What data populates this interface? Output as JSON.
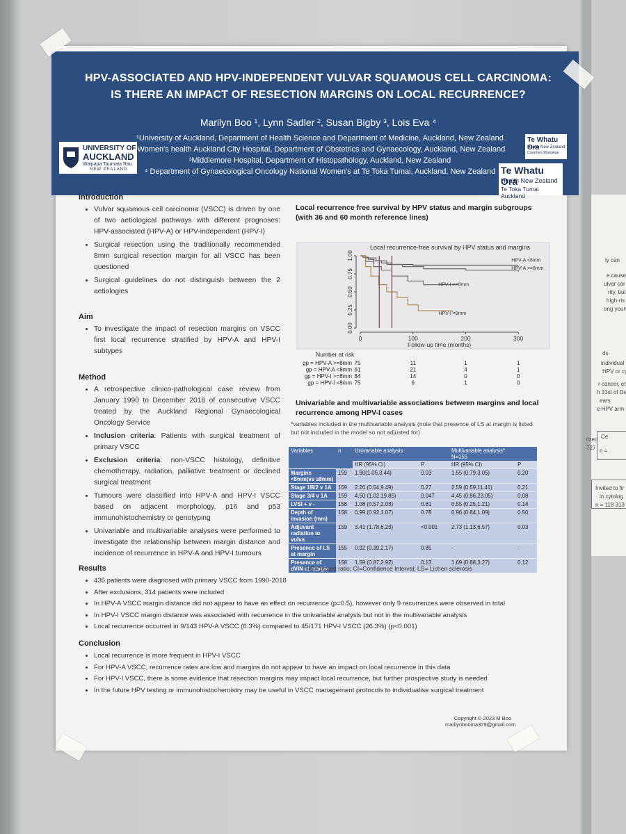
{
  "header": {
    "title_lines": [
      "HPV-ASSOCIATED AND HPV-INDEPENDENT VULVAR SQUAMOUS CELL CARCINOMA:",
      "IS THERE AN IMPACT OF RESECTION MARGINS ON LOCAL RECURRENCE?"
    ],
    "authors": "Marilyn Boo ¹, Lynn Sadler ², Susan Bigby ³, Lois Eva ⁴",
    "affiliations": [
      "¹University of Auckland, Department of Health Science and Department of Medicine, Auckland, New Zealand",
      "²Women's health Auckland City Hospital, Department of Obstetrics and Gynaecology, Auckland, New Zealand",
      "³Middlemore Hospital, Department of Histopathology, Auckland, New Zealand",
      "⁴ Department of Gynaecological Oncology National Women's at Te Toka Tumai, Auckland, New Zealand"
    ],
    "logo_university": [
      "UNIVERSITY OF",
      "AUCKLAND",
      "Waipapa Taumata Rau",
      "NEW ZEALAND"
    ],
    "logo_counties": [
      "Te Whatu Ora",
      "Health New Zealand",
      "Counties Manukau"
    ],
    "logo_auckland": [
      "Te Whatu Ora",
      "Health New Zealand",
      "Te Toka Tumai Auckland"
    ]
  },
  "introduction": {
    "heading": "Introduction",
    "bullets": [
      "Vulvar squamous cell carcinoma (VSCC) is driven by one of two aetiological pathways with different prognoses: HPV-associated (HPV-A) or HPV-independent (HPV-I)",
      "Surgical resection using the traditionally recommended 8mm surgical resection margin for all VSCC has been questioned",
      "Surgical guidelines do not distinguish between the 2 aetiologies"
    ]
  },
  "aim": {
    "heading": "Aim",
    "bullets": [
      "To investigate the impact of resection margins on VSCC first local recurrence stratified by HPV-A and HPV-I subtypes"
    ]
  },
  "method": {
    "heading": "Method",
    "bullets": [
      "A retrospective clinico-pathological case review from January 1990 to December 2018 of consecutive VSCC treated by the Auckland Regional Gynaecological Oncology Service",
      {
        "bold": "Inclusion criteria",
        "text": ": Patients with surgical treatment of primary VSCC"
      },
      {
        "bold": "Exclusion criteria",
        "text": ": non-VSCC histology, definitive chemotherapy, radiation, palliative treatment or declined surgical treatment"
      },
      "Tumours were classified into HPV-A and HPV-I VSCC based on adjacent morphology, p16 and p53 immunohistochemistry or genotyping",
      "Univariable and multivariable analyses were performed to investigate the relationship between margin distance and incidence of recurrence in HPV-A and HPV-I tumours"
    ]
  },
  "results": {
    "heading": "Results",
    "bullets": [
      "435 patients were diagnosed with primary VSCC from 1990-2018",
      "After exclusions, 314 patients were included",
      "In HPV-A VSCC margin distance did not appear to have an effect on recurrence (p=0.5), however only 9 recurrences were observed in total",
      "In HPV-I VSCC margin distance was associated with recurrence in the univariable analysis but not in the multivariable analysis",
      "Local recurrence occurred in 9/143 HPV-A VSCC (6.3%) compared to 45/171 HPV-I VSCC (26.3%) (p<0.001)"
    ]
  },
  "conclusion": {
    "heading": "Conclusion",
    "bullets": [
      "Local recurrence is more frequent in HPV-I VSCC",
      "For HPV-A VSCC, recurrence rates are low and margins do not appear to have an impact on local recurrence in this data",
      "For HPV-I VSCC, there is some evidence that resection margins may impact local recurrence, but further prospective study is needed",
      "In the future HPV testing or immunohistochemistry may be useful in VSCC management protocols to individualise surgical treatment"
    ]
  },
  "figure_heading": "Local recurrence free survival by HPV status and margin subgroups (with 36 and 60 month reference lines)",
  "chart_data": {
    "type": "line",
    "step": true,
    "title": "Local recurrence-free survival by HPV status and margins",
    "xlabel": "Follow-up time (months)",
    "xlim": [
      0,
      330
    ],
    "xticks": [
      0,
      100,
      200,
      300
    ],
    "ylim": [
      0,
      1
    ],
    "yticks": [
      {
        "value": 0,
        "label": "0.00"
      },
      {
        "value": 0.25,
        "label": "0.25"
      },
      {
        "value": 0.5,
        "label": "0.50"
      },
      {
        "value": 0.75,
        "label": "0.75"
      },
      {
        "value": 1,
        "label": "1.00"
      }
    ],
    "reference_lines": [
      36,
      60
    ],
    "reference_color": "#7a3848",
    "series": [
      {
        "name": "HPV-A <8mm",
        "color": "#555555",
        "x": [
          0,
          5,
          15,
          25,
          40,
          60,
          100,
          300
        ],
        "values": [
          1,
          0.98,
          0.95,
          0.93,
          0.9,
          0.88,
          0.87,
          0.87
        ]
      },
      {
        "name": "HPV-A >=8mm",
        "color": "#6e6e6e",
        "x": [
          0,
          10,
          30,
          50,
          80,
          120,
          200,
          300
        ],
        "values": [
          1,
          0.97,
          0.93,
          0.88,
          0.85,
          0.82,
          0.8,
          0.78
        ]
      },
      {
        "name": "HPV-I >=8mm",
        "color": "#707070",
        "x": [
          0,
          10,
          25,
          40,
          60,
          90,
          120,
          185
        ],
        "values": [
          1,
          0.92,
          0.85,
          0.8,
          0.72,
          0.65,
          0.6,
          0.6
        ]
      },
      {
        "name": "HPV-I <8mm",
        "color": "#b48a4e",
        "x": [
          0,
          10,
          20,
          35,
          50,
          70,
          90,
          110,
          175
        ],
        "values": [
          1,
          0.85,
          0.72,
          0.6,
          0.5,
          0.42,
          0.32,
          0.24,
          0.22
        ]
      }
    ]
  },
  "risk_table": {
    "title": "Number at risk",
    "rows": [
      {
        "label": "gp = HPV-A >=8mm",
        "counts": [
          75,
          11,
          1,
          1
        ]
      },
      {
        "label": "gp = HPV-A <8mm",
        "counts": [
          61,
          21,
          4,
          1
        ]
      },
      {
        "label": "gp = HPV-I >=8mm",
        "counts": [
          84,
          14,
          0,
          0
        ]
      },
      {
        "label": "gp = HPV-I <8mm",
        "counts": [
          75,
          6,
          1,
          0
        ]
      }
    ]
  },
  "table": {
    "heading": "Univariable and multivariable associations between margins and local recurrence among HPV-I cases",
    "note": "*variables included in the multivariable analysis (note that presence of LS at margin is listed but not included in the model so not adjusted for)",
    "columns": [
      "Variables",
      "n",
      "Univariable analysis",
      "Multivariable analysis*"
    ],
    "multivariable_n": "N=155",
    "subcolumns": [
      "HR (95% CI)",
      "P",
      "HR (95% CI)",
      "P"
    ],
    "rows": [
      [
        "Margins <8mm(vs ≥8mm)",
        "159",
        "1.90(1.05,3.44)",
        "0.03",
        "1.55 (0.79,3.05)",
        "0.20"
      ],
      [
        "Stage 1B/2 v 1A",
        "159",
        "2.26 (0.54,9.49)",
        "0.27",
        "2.59 (0.59,11.41)",
        "0.21"
      ],
      [
        "Stage 3/4 v 1A",
        "159",
        "4.50 (1.02,19.85)",
        "0.047",
        "4.45 (0.86,23.05)",
        "0.08"
      ],
      [
        "LVSI + v -",
        "158",
        "1.08 (0.57,2.03)",
        "0.81",
        "0.55 (0.25,1.21)",
        "0.14"
      ],
      [
        "Depth of invasion (mm)",
        "158",
        "0.99 (0.92,1.07)",
        "0.78",
        "0.96 (0.84,1.09)",
        "0.50"
      ],
      [
        "Adjuvant radiation to vulva",
        "159",
        "3.41 (1.78,6.23)",
        "<0.001",
        "2.73 (1.13,6.57)",
        "0.03"
      ],
      [
        "Presence of LS at margin",
        "155",
        "0.92 (0.39,2.17)",
        "0.85",
        "-",
        "-"
      ],
      [
        "Presence of dVIN at margin",
        "158",
        "1.59 (0.87,2.92)",
        "0.13",
        "1.69 (0.88,3.27)",
        "0.12"
      ]
    ],
    "footnote": "HR=hazard ratio; CI=Confidence Interval; LS= Lichen sclerosis"
  },
  "footer": [
    "Copyright © 2023 M Boo",
    "marilynbooma379@gmail.com"
  ],
  "background_fragments": [
    "ly can",
    "e cause",
    "ulvar car",
    "rity, but",
    "high-ris",
    "ong youn",
    "ds",
    "individual",
    "HPV or cy",
    "r cancer, en",
    "h 31st of De",
    "ears",
    "e HPV arm c",
    "lized",
    "727",
    "Ce",
    "n =",
    "Invited to fir",
    "in cytolog",
    "n = 118 313"
  ]
}
